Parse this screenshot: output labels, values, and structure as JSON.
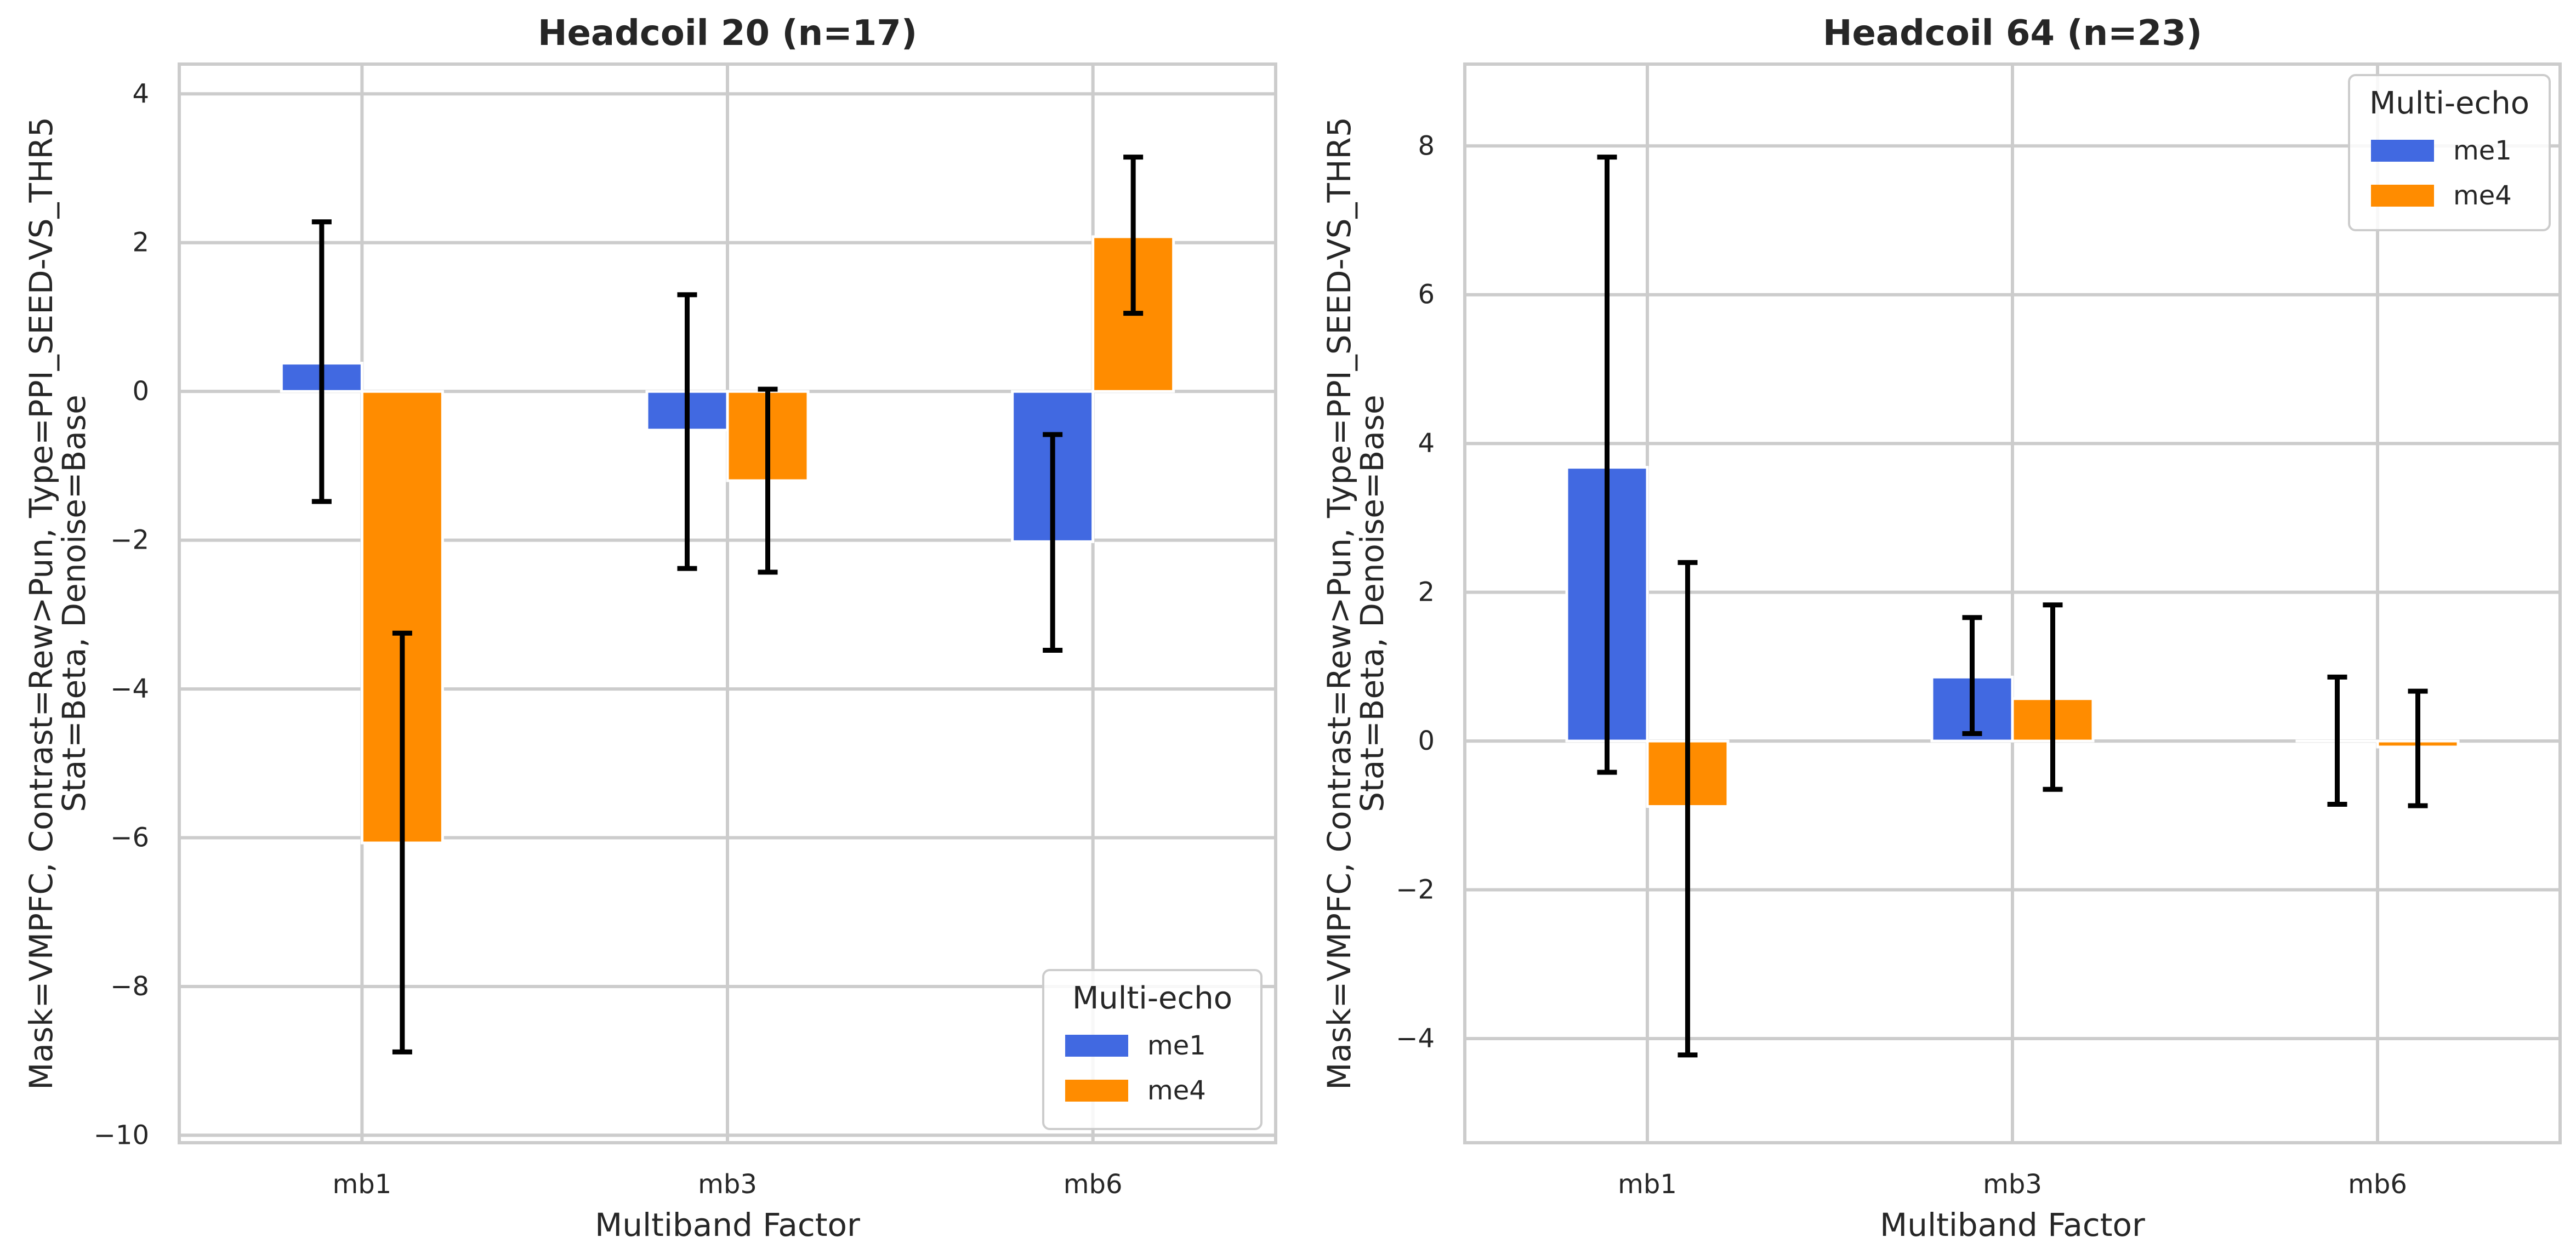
{
  "chart_data": [
    {
      "type": "bar",
      "title": "Headcoil 20 (n=17)",
      "xlabel": "Multiband Factor",
      "ylabel": [
        "Mask=VMPFC, Contrast=Rew>Pun, Type=PPI_SEED-VS_THR5",
        "Stat=Beta, Denoise=Base"
      ],
      "categories": [
        "mb1",
        "mb3",
        "mb6"
      ],
      "ylim": [
        -10.1,
        4.4
      ],
      "yticks": [
        -10,
        -8,
        -6,
        -4,
        -2,
        0,
        2,
        4
      ],
      "legend": {
        "title": "Multi-echo",
        "placement": "lower-right"
      },
      "grid": true,
      "series": [
        {
          "name": "me1",
          "color": "#4169e1",
          "values": [
            0.38,
            -0.52,
            -2.02
          ],
          "err_low": [
            -1.48,
            -2.38,
            -3.48
          ],
          "err_high": [
            2.28,
            1.3,
            -0.58
          ]
        },
        {
          "name": "me4",
          "color": "#ff8c00",
          "values": [
            -6.07,
            -1.2,
            2.08
          ],
          "err_low": [
            -8.88,
            -2.43,
            1.05
          ],
          "err_high": [
            -3.25,
            0.03,
            3.15
          ]
        }
      ]
    },
    {
      "type": "bar",
      "title": "Headcoil 64 (n=23)",
      "xlabel": "Multiband Factor",
      "ylabel": [
        "Mask=VMPFC, Contrast=Rew>Pun, Type=PPI_SEED-VS_THR5",
        "Stat=Beta, Denoise=Base"
      ],
      "categories": [
        "mb1",
        "mb3",
        "mb6"
      ],
      "ylim": [
        -5.4,
        9.1
      ],
      "yticks": [
        -4,
        -2,
        0,
        2,
        4,
        6,
        8
      ],
      "legend": {
        "title": "Multi-echo",
        "placement": "upper-right"
      },
      "grid": true,
      "series": [
        {
          "name": "me1",
          "color": "#4169e1",
          "values": [
            3.68,
            0.86,
            0.0
          ],
          "err_low": [
            -0.42,
            0.1,
            -0.85
          ],
          "err_high": [
            7.85,
            1.66,
            0.86
          ]
        },
        {
          "name": "me4",
          "color": "#ff8c00",
          "values": [
            -0.88,
            0.57,
            -0.08
          ],
          "err_low": [
            -4.22,
            -0.65,
            -0.87
          ],
          "err_high": [
            2.4,
            1.83,
            0.67
          ]
        }
      ]
    }
  ]
}
